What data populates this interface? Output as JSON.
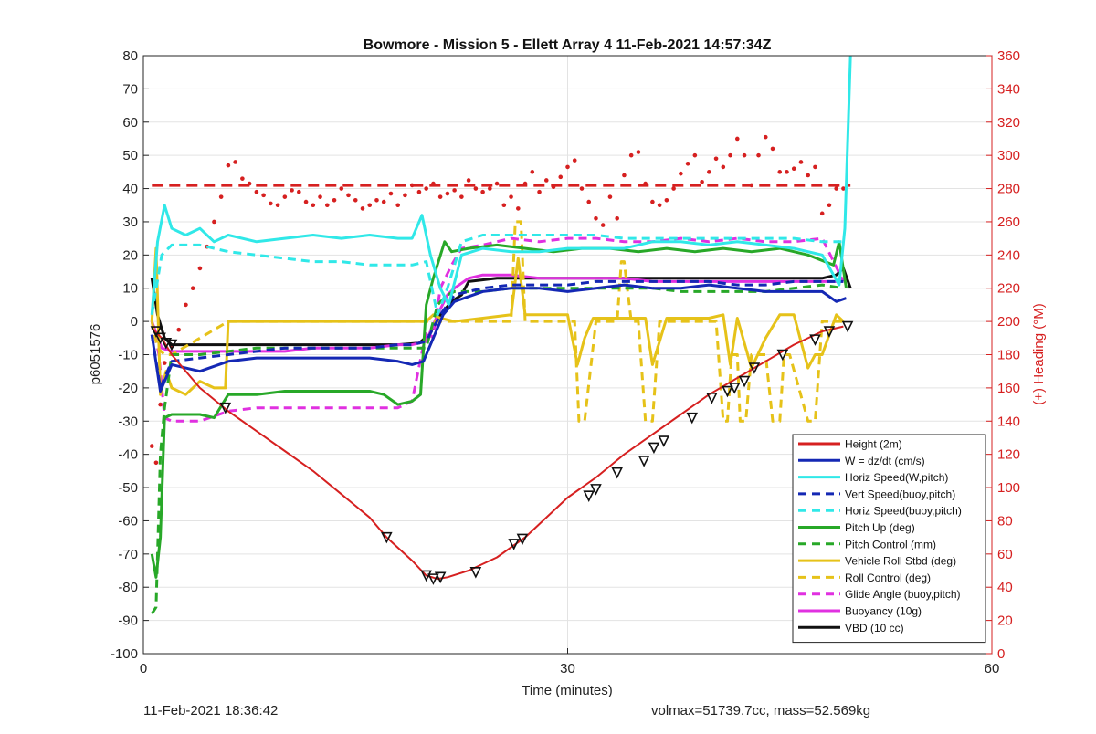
{
  "chart_data": {
    "type": "line",
    "title": "Bowmore - Mission 5 - Ellett Array 4 11-Feb-2021 14:57:34Z",
    "xlabel": "Time (minutes)",
    "ylabel": "p6051576",
    "y2label": "(+) Heading (°M)",
    "xlim": [
      0,
      60
    ],
    "ylim": [
      -100,
      80
    ],
    "y2lim": [
      0,
      360
    ],
    "xticks": [
      "0",
      "30",
      "60"
    ],
    "yticks": [
      "-100",
      "-90",
      "-80",
      "-70",
      "-60",
      "-50",
      "-40",
      "-30",
      "-20",
      "-10",
      "0",
      "10",
      "20",
      "30",
      "40",
      "50",
      "60",
      "70",
      "80"
    ],
    "y2ticks": [
      "0",
      "20",
      "40",
      "60",
      "80",
      "100",
      "120",
      "140",
      "160",
      "180",
      "200",
      "220",
      "240",
      "260",
      "280",
      "300",
      "320",
      "340",
      "360"
    ],
    "grid": true,
    "legend_position": "lower-right",
    "series": [
      {
        "name": "Height (2m)",
        "color": "#d62020",
        "style": "solid",
        "x": [
          0.6,
          1.3,
          2.0,
          4,
          6,
          8,
          10,
          12,
          14,
          16,
          17.2,
          19,
          20,
          20.8,
          21.5,
          23,
          25,
          27,
          30,
          32,
          34,
          36,
          38,
          40,
          42,
          44,
          46,
          48,
          49.5
        ],
        "y": [
          -2,
          -5,
          -10,
          -20,
          -27,
          -33,
          -39,
          -45,
          -52,
          -59,
          -65,
          -72,
          -76.5,
          -77.5,
          -77,
          -75,
          -71,
          -65,
          -53,
          -47,
          -40,
          -34,
          -28,
          -22,
          -17,
          -12,
          -7,
          -3,
          -1.5
        ]
      },
      {
        "name": "W = dz/dt (cm/s)",
        "color": "#1428b4",
        "style": "solid",
        "x": [
          0.6,
          1.2,
          2,
          3,
          4,
          6,
          8,
          10,
          12,
          14,
          16,
          18,
          19,
          19.8,
          20.5,
          21.2,
          22,
          24,
          26,
          28,
          30,
          32,
          34,
          36,
          38,
          40,
          42,
          44,
          46,
          48,
          49,
          49.7
        ],
        "y": [
          -4,
          -21,
          -13,
          -14,
          -15,
          -12,
          -11,
          -11,
          -11,
          -11,
          -11,
          -12,
          -13,
          -12,
          -5,
          2,
          6,
          9,
          10,
          10,
          9,
          10,
          11,
          10,
          10,
          11,
          10,
          9,
          9,
          9,
          6,
          7
        ]
      },
      {
        "name": "Horiz Speed(W,pitch)",
        "color": "#30e8e8",
        "style": "solid",
        "x": [
          0.6,
          1.0,
          1.5,
          2,
          3,
          4,
          5,
          6,
          8,
          10,
          12,
          14,
          16,
          18,
          19,
          19.7,
          20.3,
          21,
          21.6,
          22.5,
          24,
          26,
          28,
          30,
          32,
          34,
          36,
          38,
          40,
          42,
          44,
          46,
          48,
          49.2,
          49.6,
          50
        ],
        "y": [
          2,
          24,
          35,
          28,
          26,
          28,
          24,
          26,
          24,
          25,
          26,
          25,
          26,
          25,
          25,
          32,
          20,
          10,
          5,
          20,
          22,
          21,
          21,
          22,
          22,
          22,
          24,
          24,
          23,
          24,
          23,
          22,
          20,
          11,
          28,
          80
        ]
      },
      {
        "name": "Vert Speed(buoy,pitch)",
        "color": "#1428b4",
        "style": "dashed",
        "x": [
          0.6,
          1.2,
          2,
          4,
          6,
          8,
          10,
          12,
          14,
          16,
          18,
          19,
          20,
          21,
          22,
          24,
          26,
          28,
          30,
          32,
          34,
          36,
          38,
          40,
          42,
          44,
          46,
          48,
          49.5
        ],
        "y": [
          -4,
          -20,
          -12,
          -11,
          -10,
          -9,
          -8,
          -8,
          -8,
          -8,
          -7,
          -7,
          -6,
          2,
          8,
          10,
          11,
          11,
          11,
          12,
          12,
          12,
          12,
          12,
          11,
          11,
          12,
          12,
          12
        ]
      },
      {
        "name": "Horiz Speed(buoy,pitch)",
        "color": "#30e8e8",
        "style": "dashed",
        "x": [
          0.6,
          1.3,
          2,
          4,
          6,
          8,
          10,
          12,
          14,
          16,
          18,
          19,
          20,
          20.8,
          21.5,
          22.5,
          24,
          26,
          28,
          30,
          32,
          34,
          36,
          38,
          40,
          42,
          44,
          46,
          48,
          49.5
        ],
        "y": [
          2,
          20,
          23,
          23,
          21,
          20,
          19,
          18,
          18,
          17,
          17,
          17,
          18,
          2,
          10,
          24,
          26,
          26,
          26,
          26,
          26,
          25,
          25,
          25,
          25,
          25,
          25,
          25,
          24,
          24
        ]
      },
      {
        "name": "Pitch Up (deg)",
        "color": "#28a828",
        "style": "solid",
        "x": [
          0.6,
          0.9,
          1.2,
          1.5,
          2,
          3,
          4,
          5,
          6,
          8,
          10,
          12,
          14,
          16,
          17,
          18,
          19,
          19.6,
          20,
          20.5,
          21.3,
          21.8,
          23,
          25,
          27,
          29,
          31,
          33,
          35,
          37,
          39,
          41,
          43,
          45,
          47,
          48.8,
          49.2,
          49.7
        ],
        "y": [
          -70,
          -77,
          -65,
          -29,
          -28,
          -28,
          -28,
          -29,
          -22,
          -22,
          -21,
          -21,
          -21,
          -21,
          -22,
          -25,
          -24,
          -22,
          5,
          13,
          24,
          21,
          22,
          23,
          22,
          21,
          22,
          22,
          21,
          22,
          21,
          22,
          21,
          22,
          20,
          17,
          24,
          10
        ]
      },
      {
        "name": "Pitch Control (mm)",
        "color": "#28a828",
        "style": "dashed",
        "x": [
          0.6,
          0.9,
          1.2,
          1.5,
          2,
          4,
          6,
          8,
          10,
          12,
          14,
          16,
          18,
          19,
          20,
          20.8,
          21.5,
          22,
          24,
          26,
          28,
          30,
          32,
          34,
          36,
          38,
          40,
          42,
          44,
          46,
          48,
          49.5
        ],
        "y": [
          -88,
          -86,
          -40,
          -26,
          -10,
          -10,
          -9,
          -8,
          -8,
          -8,
          -8,
          -8,
          -8,
          -8,
          -8,
          5,
          8,
          9,
          9,
          10,
          10,
          10,
          10,
          10,
          10,
          9,
          9,
          9,
          9,
          10,
          11,
          10
        ]
      },
      {
        "name": "Vehicle Roll Stbd (deg)",
        "color": "#e6c219",
        "style": "solid",
        "x": [
          0.6,
          0.9,
          1.2,
          1.6,
          2,
          3,
          4,
          5,
          5.8,
          6,
          8,
          10,
          12,
          14,
          16,
          18,
          19,
          20,
          20.5,
          21,
          22,
          24,
          26,
          26.5,
          27,
          28,
          30,
          30.7,
          31.2,
          31.8,
          32,
          34,
          35.5,
          36,
          37,
          38,
          40,
          41,
          41.5,
          42,
          43,
          44,
          45,
          46,
          47,
          47.5,
          48,
          49,
          49.5
        ],
        "y": [
          0,
          22,
          -22,
          -15,
          -20,
          -22,
          -18,
          -20,
          -20,
          0,
          0,
          0,
          0,
          0,
          0,
          0,
          0,
          0,
          2,
          1,
          0,
          1,
          2,
          19,
          2,
          2,
          2,
          -13,
          -5,
          1,
          1,
          1,
          1,
          -13,
          1,
          1,
          1,
          2,
          -13,
          1,
          -14,
          -5,
          2,
          2,
          -14,
          -10,
          -10,
          2,
          0
        ]
      },
      {
        "name": "Roll Control (deg)",
        "color": "#e6c219",
        "style": "dashed",
        "x": [
          0.6,
          1.0,
          1.5,
          2,
          6,
          10,
          14,
          18,
          20,
          21,
          24,
          26,
          26.3,
          26.7,
          27,
          30,
          30.5,
          30.8,
          31.2,
          32,
          33.5,
          33.8,
          34,
          34.5,
          35,
          35.5,
          36,
          36.5,
          40,
          40.5,
          41,
          41.3,
          41.6,
          42,
          42.2,
          42.6,
          43,
          44,
          44.5,
          45,
          45.3,
          45.7,
          47,
          47.5,
          48,
          48.5,
          49,
          49.5
        ],
        "y": [
          0,
          -8,
          -10,
          -10,
          0,
          0,
          0,
          0,
          0,
          0,
          0,
          0,
          30,
          30,
          0,
          0,
          0,
          -30,
          -30,
          0,
          0,
          18,
          18,
          0,
          0,
          -30,
          -30,
          0,
          0,
          0,
          -30,
          -30,
          -10,
          -10,
          -30,
          -30,
          -10,
          -10,
          -30,
          -30,
          -10,
          -10,
          -30,
          -30,
          0,
          0,
          0,
          0
        ]
      },
      {
        "name": "Glide Angle (buoy,pitch)",
        "color": "#e030e0",
        "style": "dashed",
        "x": [
          0.6,
          1.1,
          1.5,
          2,
          4,
          6,
          8,
          10,
          12,
          14,
          16,
          17,
          18,
          19,
          20,
          20.5,
          21,
          21.8,
          22.5,
          24,
          26,
          28,
          30,
          32,
          34,
          36,
          38,
          40,
          42,
          44,
          46,
          48,
          49.5
        ],
        "y": [
          0,
          -10,
          -29,
          -30,
          -30,
          -27,
          -26,
          -26,
          -26,
          -26,
          -26,
          -26,
          -26,
          -24,
          -3,
          -5,
          10,
          17,
          22,
          23,
          25,
          24,
          25,
          25,
          24,
          24,
          25,
          24,
          25,
          24,
          24,
          25,
          12
        ]
      },
      {
        "name": "Buoyancy (10g)",
        "color": "#e030e0",
        "style": "solid",
        "x": [
          0.6,
          1.3,
          2,
          4,
          6,
          8,
          10,
          12,
          14,
          16,
          18,
          19,
          20,
          20.8,
          21.5,
          22,
          23,
          24,
          26,
          28,
          30,
          32,
          34,
          36,
          38,
          40,
          42,
          44,
          46,
          48,
          49.5
        ],
        "y": [
          0,
          -8,
          -9,
          -9,
          -9,
          -9,
          -9,
          -8,
          -8,
          -8,
          -7,
          -7,
          -6,
          2,
          8,
          10,
          13,
          14,
          14,
          13,
          13,
          13,
          13,
          12,
          12,
          12,
          12,
          12,
          12,
          12,
          12
        ]
      },
      {
        "name": "VBD (10 cc)",
        "color": "#111111",
        "style": "solid",
        "x": [
          0.6,
          1.0,
          1.5,
          2,
          4,
          6,
          10,
          14,
          18,
          19.5,
          20.2,
          21,
          21.8,
          22.5,
          23,
          25,
          30,
          35,
          40,
          45,
          48,
          49,
          49.5,
          50
        ],
        "y": [
          13,
          2,
          -5,
          -7,
          -7,
          -7,
          -7,
          -7,
          -7,
          -6.5,
          -4,
          2,
          6,
          8,
          12,
          13,
          13,
          13,
          13,
          13,
          13,
          14,
          16,
          10
        ]
      }
    ],
    "heading_series": {
      "name": "Heading",
      "axis": "right",
      "color": "#d62020",
      "style": "dotted",
      "x": [
        0.6,
        0.9,
        1.2,
        1.5,
        2,
        2.5,
        3,
        3.5,
        4,
        4.5,
        5,
        5.5,
        6,
        6.5,
        7,
        7.5,
        8,
        8.5,
        9,
        9.5,
        10,
        10.5,
        11,
        11.5,
        12,
        12.5,
        13,
        13.5,
        14,
        14.5,
        15,
        15.5,
        16,
        16.5,
        17,
        17.5,
        18,
        18.5,
        19,
        19.5,
        20,
        20.5,
        21,
        21.5,
        22,
        22.5,
        23,
        23.5,
        24,
        24.5,
        25,
        25.5,
        26,
        26.5,
        27,
        27.5,
        28,
        28.5,
        29,
        29.5,
        30,
        30.5,
        31,
        31.5,
        32,
        32.5,
        33,
        33.5,
        34,
        34.5,
        35,
        35.5,
        36,
        36.5,
        37,
        37.5,
        38,
        38.5,
        39,
        39.5,
        40,
        40.5,
        41,
        41.5,
        42,
        42.5,
        43,
        43.5,
        44,
        44.5,
        45,
        45.5,
        46,
        46.5,
        47,
        47.5,
        48,
        48.5,
        49,
        49.5
      ],
      "y": [
        125,
        115,
        150,
        175,
        185,
        195,
        210,
        220,
        232,
        245,
        260,
        275,
        294,
        296,
        286,
        283,
        278,
        276,
        271,
        270,
        275,
        279,
        278,
        272,
        270,
        275,
        270,
        273,
        280,
        276,
        273,
        268,
        270,
        273,
        272,
        277,
        270,
        276,
        282,
        278,
        280,
        283,
        275,
        277,
        279,
        275,
        285,
        280,
        278,
        280,
        283,
        270,
        275,
        268,
        283,
        290,
        278,
        285,
        281,
        287,
        293,
        297,
        280,
        272,
        262,
        258,
        275,
        262,
        288,
        300,
        302,
        283,
        272,
        270,
        273,
        280,
        289,
        295,
        300,
        284,
        290,
        298,
        293,
        300,
        310,
        300,
        282,
        300,
        311,
        304,
        290,
        290,
        292,
        296,
        288,
        293,
        265,
        270,
        280,
        280
      ]
    },
    "heading_reference": {
      "value": 282,
      "style": "dashed",
      "color": "#d62020"
    },
    "markers": {
      "x": [
        0.9,
        1.2,
        1.6,
        2.0,
        5.8,
        17.2,
        20.0,
        20.5,
        21.0,
        23.5,
        26.2,
        26.8,
        31.5,
        32,
        33.5,
        35.4,
        36.1,
        36.8,
        38.8,
        40.2,
        41.3,
        41.8,
        42.5,
        43.2,
        45.2,
        47.5,
        48.5,
        49.8
      ],
      "y": [
        -3,
        -5,
        -6.5,
        -7,
        -26,
        -65,
        -76.5,
        -77.5,
        -77,
        -75.5,
        -67,
        -65.5,
        -52.5,
        -50.5,
        -45.5,
        -42,
        -38,
        -36,
        -29,
        -23,
        -21,
        -20,
        -18,
        -14,
        -10,
        -5.5,
        -3,
        -1.5
      ]
    }
  },
  "footer": {
    "left": "11-Feb-2021 18:36:42",
    "right": "volmax=51739.7cc, mass=52.569kg"
  }
}
